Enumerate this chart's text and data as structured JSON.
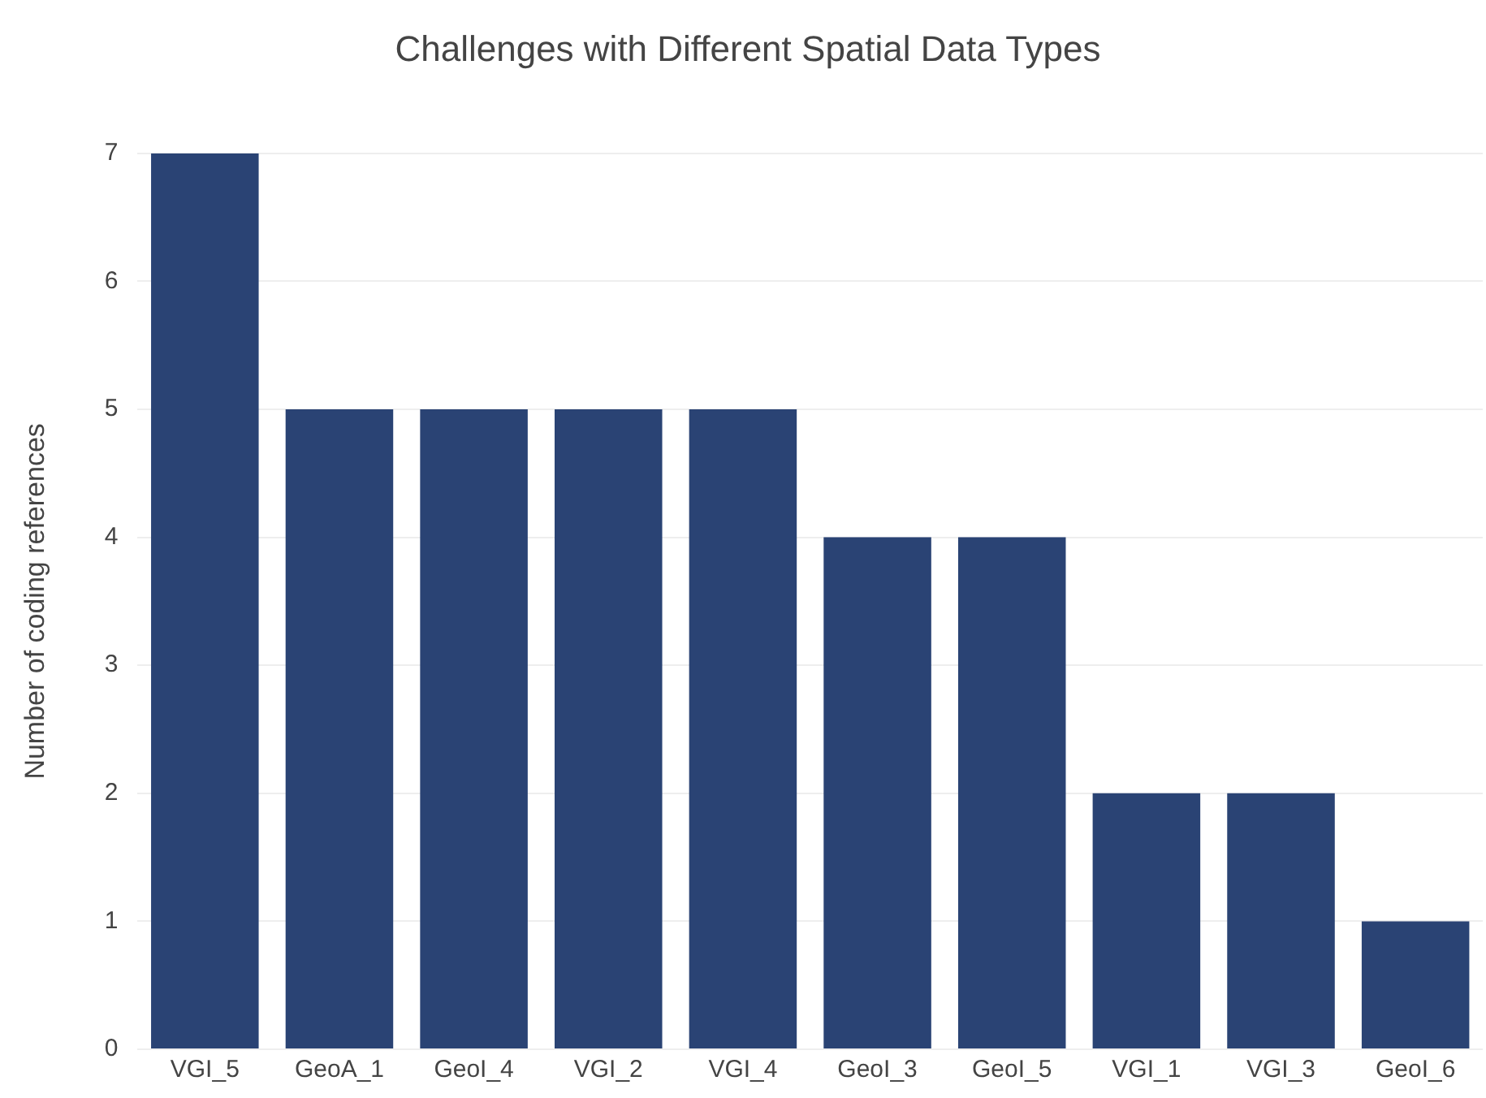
{
  "chart_data": {
    "type": "bar",
    "title": "Challenges with Different Spatial Data Types",
    "ylabel": "Number of coding references",
    "categories": [
      "VGI_5",
      "GeoA_1",
      "GeoI_4",
      "VGI_2",
      "VGI_4",
      "GeoI_3",
      "GeoI_5",
      "VGI_1",
      "VGI_3",
      "GeoI_6"
    ],
    "values": [
      7,
      5,
      5,
      5,
      5,
      4,
      4,
      2,
      2,
      1
    ],
    "color": "#2a4374",
    "ylim": [
      0,
      7
    ],
    "yticks": [
      0,
      1,
      2,
      3,
      4,
      5,
      6,
      7
    ],
    "grid": "y"
  }
}
